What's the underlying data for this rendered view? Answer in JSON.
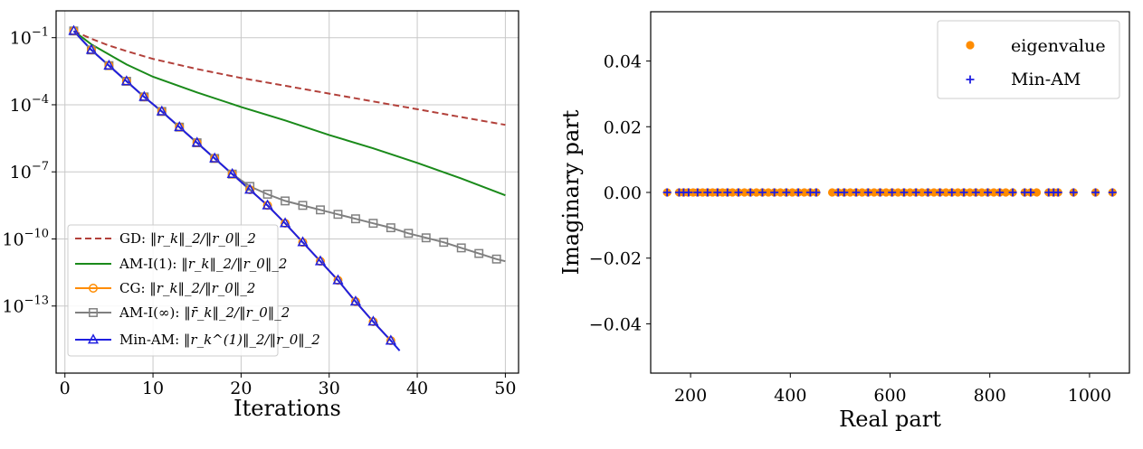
{
  "chart_data": [
    {
      "type": "line",
      "title": "",
      "xlabel": "Iterations",
      "ylabel": "",
      "yscale": "log",
      "xlim": [
        -1,
        51.5
      ],
      "ylim_exponent": [
        -16,
        0.2
      ],
      "xticks": [
        0,
        10,
        20,
        30,
        40,
        50
      ],
      "xtick_labels": [
        "0",
        "10",
        "20",
        "30",
        "40",
        "50"
      ],
      "yticks_exponent": [
        -1,
        -4,
        -7,
        -10,
        -13
      ],
      "ytick_labels": [
        "10",
        "10",
        "10",
        "10",
        "10"
      ],
      "ytick_exponent_labels": [
        "−1",
        "−4",
        "−7",
        "−10",
        "−13"
      ],
      "grid": true,
      "legend_position": "lower-left",
      "series": [
        {
          "name": "GD: ‖r_k‖_2/‖r_0‖_2",
          "legend_prefix": "GD:",
          "legend_expr": "‖r_k‖_2/‖r_0‖_2",
          "color": "#b2403a",
          "style": "dashed",
          "marker": "none",
          "x": [
            1,
            3,
            5,
            7,
            10,
            15,
            20,
            25,
            30,
            35,
            40,
            45,
            50
          ],
          "y_log10": [
            -0.7,
            -1.05,
            -1.35,
            -1.6,
            -1.95,
            -2.4,
            -2.8,
            -3.15,
            -3.5,
            -3.85,
            -4.2,
            -4.55,
            -4.9
          ]
        },
        {
          "name": "AM-I(1): ‖r_k‖_2/‖r_0‖_2",
          "legend_prefix": "AM-I(1):",
          "legend_expr": "‖r_k‖_2/‖r_0‖_2",
          "color": "#1a8a1a",
          "style": "solid",
          "marker": "none",
          "x": [
            1,
            3,
            5,
            7,
            10,
            15,
            20,
            25,
            30,
            35,
            40,
            45,
            50
          ],
          "y_log10": [
            -0.7,
            -1.3,
            -1.75,
            -2.2,
            -2.75,
            -3.45,
            -4.1,
            -4.7,
            -5.35,
            -5.95,
            -6.6,
            -7.3,
            -8.05
          ]
        },
        {
          "name": "CG: ‖r_k‖_2/‖r_0‖_2",
          "legend_prefix": "CG:",
          "legend_expr": "‖r_k‖_2/‖r_0‖_2",
          "color": "#ff8c00",
          "style": "solid",
          "marker": "circle",
          "x": [
            1,
            3,
            5,
            7,
            9,
            11,
            13,
            15,
            17,
            19,
            21,
            23,
            25,
            27,
            29,
            31,
            33,
            35,
            37
          ],
          "y_log10": [
            -0.7,
            -1.55,
            -2.25,
            -2.95,
            -3.65,
            -4.3,
            -5.0,
            -5.7,
            -6.4,
            -7.1,
            -7.8,
            -8.5,
            -9.3,
            -10.15,
            -11.0,
            -11.85,
            -12.8,
            -13.7,
            -14.55
          ]
        },
        {
          "name": "AM-I(∞): ‖r̄_k‖_2/‖r_0‖_2",
          "legend_prefix": "AM-I(∞):",
          "legend_expr": "‖r̄_k‖_2/‖r_0‖_2",
          "color": "#808080",
          "style": "solid",
          "marker": "square",
          "x": [
            1,
            3,
            5,
            7,
            9,
            11,
            13,
            15,
            17,
            19,
            21,
            23,
            25,
            27,
            29,
            31,
            33,
            35,
            37,
            39,
            41,
            43,
            45,
            47,
            49,
            50
          ],
          "y_log10": [
            -0.7,
            -1.55,
            -2.25,
            -2.95,
            -3.65,
            -4.3,
            -5.0,
            -5.7,
            -6.4,
            -7.1,
            -7.65,
            -8.0,
            -8.3,
            -8.5,
            -8.7,
            -8.9,
            -9.1,
            -9.3,
            -9.5,
            -9.75,
            -9.95,
            -10.15,
            -10.4,
            -10.65,
            -10.9,
            -11.0
          ]
        },
        {
          "name": "Min-AM: ‖r_k^(1)‖_2/‖r_0‖_2",
          "legend_prefix": "Min-AM:",
          "legend_expr": "‖r_k^(1)‖_2/‖r_0‖_2",
          "color": "#1f1fe0",
          "style": "solid",
          "marker": "triangle",
          "x": [
            1,
            3,
            5,
            7,
            9,
            11,
            13,
            15,
            17,
            19,
            21,
            23,
            25,
            27,
            29,
            31,
            33,
            35,
            37,
            38
          ],
          "y_log10": [
            -0.7,
            -1.55,
            -2.25,
            -2.95,
            -3.65,
            -4.3,
            -5.0,
            -5.7,
            -6.4,
            -7.1,
            -7.8,
            -8.5,
            -9.3,
            -10.15,
            -11.0,
            -11.85,
            -12.8,
            -13.7,
            -14.55,
            -15.0
          ]
        }
      ]
    },
    {
      "type": "scatter",
      "title": "",
      "xlabel": "Real part",
      "ylabel": "Imaginary part",
      "xlim": [
        120,
        1080
      ],
      "ylim": [
        -0.055,
        0.055
      ],
      "xticks": [
        200,
        400,
        600,
        800,
        1000
      ],
      "xtick_labels": [
        "200",
        "400",
        "600",
        "800",
        "1000"
      ],
      "yticks": [
        0.04,
        0.02,
        0.0,
        -0.02,
        -0.04
      ],
      "ytick_labels": [
        "0.04",
        "0.02",
        "0.00",
        "−0.02",
        "−0.04"
      ],
      "grid": false,
      "legend_position": "top-right",
      "series": [
        {
          "name": "eigenvalue",
          "color": "#ff8c00",
          "marker": "circle",
          "x": [
            153,
            177,
            186,
            195,
            205,
            214,
            224,
            234,
            244,
            254,
            264,
            274,
            284,
            296,
            308,
            320,
            332,
            344,
            356,
            368,
            380,
            392,
            404,
            416,
            428,
            440,
            452,
            484,
            496,
            508,
            520,
            532,
            544,
            556,
            568,
            580,
            592,
            604,
            616,
            628,
            640,
            652,
            664,
            676,
            688,
            700,
            712,
            724,
            736,
            748,
            760,
            772,
            784,
            796,
            808,
            820,
            832,
            846,
            870,
            882,
            894,
            918,
            928,
            937,
            968,
            1012,
            1046
          ],
          "y": [
            0,
            0,
            0,
            0,
            0,
            0,
            0,
            0,
            0,
            0,
            0,
            0,
            0,
            0,
            0,
            0,
            0,
            0,
            0,
            0,
            0,
            0,
            0,
            0,
            0,
            0,
            0,
            0,
            0,
            0,
            0,
            0,
            0,
            0,
            0,
            0,
            0,
            0,
            0,
            0,
            0,
            0,
            0,
            0,
            0,
            0,
            0,
            0,
            0,
            0,
            0,
            0,
            0,
            0,
            0,
            0,
            0,
            0,
            0,
            0,
            0,
            0,
            0,
            0,
            0,
            0,
            0
          ]
        },
        {
          "name": "Min-AM",
          "color": "#1f1fe0",
          "marker": "plus",
          "x": [
            153,
            177,
            186,
            196,
            214,
            234,
            254,
            274,
            296,
            320,
            344,
            368,
            392,
            416,
            440,
            452,
            496,
            508,
            532,
            556,
            580,
            604,
            628,
            652,
            676,
            700,
            724,
            748,
            772,
            796,
            820,
            846,
            870,
            882,
            918,
            928,
            937,
            968,
            1012,
            1046
          ],
          "y": [
            0,
            0,
            0,
            0,
            0,
            0,
            0,
            0,
            0,
            0,
            0,
            0,
            0,
            0,
            0,
            0,
            0,
            0,
            0,
            0,
            0,
            0,
            0,
            0,
            0,
            0,
            0,
            0,
            0,
            0,
            0,
            0,
            0,
            0,
            0,
            0,
            0,
            0,
            0,
            0
          ]
        }
      ]
    }
  ]
}
